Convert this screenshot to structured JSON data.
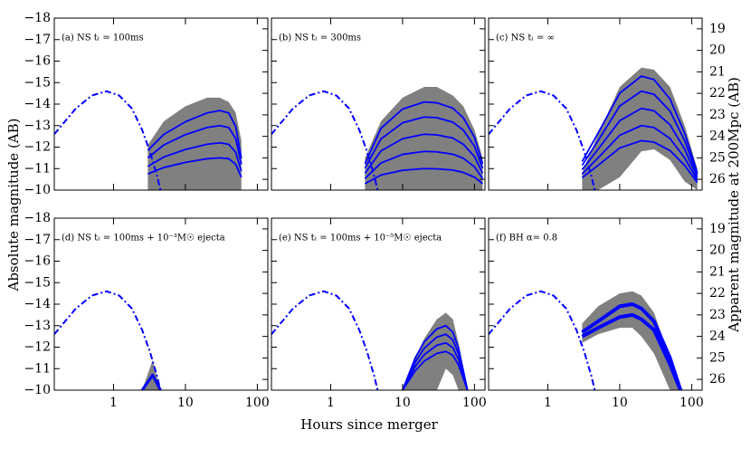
{
  "figure": {
    "xlabel": "Hours since merger",
    "ylabel": "Absolute magnitude (AB)",
    "y2label": "Apparent magnitude at 200Mpc (AB)",
    "xscale": "log",
    "xlim": [
      0.15,
      140
    ],
    "xticks": [
      1,
      10,
      100
    ],
    "ylim": [
      -10,
      -18
    ],
    "yticks": [
      {
        "value": -18,
        "label": "−18"
      },
      {
        "value": -17,
        "label": "−17"
      },
      {
        "value": -16,
        "label": "−16"
      },
      {
        "value": -15,
        "label": "−15"
      },
      {
        "value": -14,
        "label": "−14"
      },
      {
        "value": -13,
        "label": "−13"
      },
      {
        "value": -12,
        "label": "−12"
      },
      {
        "value": -11,
        "label": "−11"
      },
      {
        "value": -10,
        "label": "−10"
      }
    ],
    "y2lim": [
      26.5,
      18.5
    ],
    "y2ticks": [
      19,
      20,
      21,
      22,
      23,
      24,
      25,
      26
    ],
    "common_series": {
      "color": "#0000ff",
      "style": "dashdot",
      "x": [
        0.15,
        0.2,
        0.3,
        0.5,
        0.8,
        1.2,
        1.8,
        2.5,
        3.2,
        4,
        4.5
      ],
      "values": [
        -12.6,
        -13.1,
        -13.8,
        -14.4,
        -14.6,
        -14.4,
        -13.8,
        -12.8,
        -11.8,
        -10.7,
        -10
      ]
    }
  },
  "chart_data": [
    {
      "type": "line",
      "annotation": "(a) NS tₗ = 100ms",
      "band_color": "#808080",
      "line_width": 1.8,
      "x": [
        3,
        5,
        10,
        20,
        30,
        40,
        50,
        60
      ],
      "band_upper": [
        -12.1,
        -13.2,
        -13.9,
        -14.3,
        -14.3,
        -14.1,
        -13.6,
        -12.3
      ],
      "band_lower": [
        -10,
        -10,
        -10,
        -10,
        -10,
        -10,
        -10,
        -10
      ],
      "series": [
        {
          "color": "#0000ff",
          "values": [
            -11.85,
            -12.59,
            -13.18,
            -13.59,
            -13.7,
            -13.59,
            -12.96,
            -11.48
          ]
        },
        {
          "color": "#0000ff",
          "values": [
            -11.5,
            -12.1,
            -12.58,
            -12.91,
            -13.0,
            -12.91,
            -12.4,
            -11.2
          ]
        },
        {
          "color": "#0000ff",
          "values": [
            -11.1,
            -11.54,
            -11.89,
            -12.13,
            -12.2,
            -12.13,
            -11.76,
            -10.88
          ]
        },
        {
          "color": "#0000ff",
          "values": [
            -10.75,
            -11.05,
            -11.29,
            -11.46,
            -11.5,
            -11.46,
            -11.2,
            -10.6
          ]
        }
      ]
    },
    {
      "type": "line",
      "annotation": "(b) NS tₗ = 300ms",
      "band_color": "#808080",
      "line_width": 1.8,
      "x": [
        3,
        5,
        10,
        20,
        30,
        50,
        70,
        100,
        130
      ],
      "band_upper": [
        -11.5,
        -13.2,
        -14.3,
        -14.8,
        -14.8,
        -14.4,
        -13.9,
        -12.8,
        -11.5
      ],
      "band_lower": [
        -10,
        -10,
        -10,
        -10,
        -10,
        -10,
        -10,
        -10,
        -10
      ],
      "series": [
        {
          "color": "#0000ff",
          "values": [
            -11.23,
            -12.87,
            -13.77,
            -14.1,
            -14.06,
            -13.81,
            -13.36,
            -12.46,
            -11.23
          ]
        },
        {
          "color": "#0000ff",
          "values": [
            -11.02,
            -12.38,
            -13.13,
            -13.4,
            -13.37,
            -13.16,
            -12.79,
            -12.04,
            -11.02
          ]
        },
        {
          "color": "#0000ff",
          "values": [
            -10.78,
            -11.82,
            -12.39,
            -12.6,
            -12.57,
            -12.42,
            -12.13,
            -11.56,
            -10.78
          ]
        },
        {
          "color": "#0000ff",
          "values": [
            -10.54,
            -11.26,
            -11.66,
            -11.8,
            -11.78,
            -11.67,
            -11.48,
            -11.08,
            -10.54
          ]
        },
        {
          "color": "#0000ff",
          "values": [
            -10.3,
            -10.7,
            -10.92,
            -11.0,
            -10.99,
            -10.93,
            -10.82,
            -10.6,
            -10.3
          ]
        }
      ]
    },
    {
      "type": "line",
      "annotation": "(c) NS tₗ = ∞",
      "band_color": "#808080",
      "line_width": 1.8,
      "x": [
        3,
        5,
        10,
        20,
        30,
        50,
        80,
        120
      ],
      "band_upper": [
        -10.8,
        -12.6,
        -14.8,
        -15.7,
        -15.6,
        -14.8,
        -13,
        -11
      ],
      "band_lower": [
        -10,
        -10,
        -10.6,
        -11.8,
        -11.9,
        -11.4,
        -10.4,
        -10
      ],
      "series": [
        {
          "color": "#0000ff",
          "values": [
            -11.33,
            -12.65,
            -14.51,
            -15.3,
            -15.14,
            -14.24,
            -12.65,
            -10.8
          ]
        },
        {
          "color": "#0000ff",
          "values": [
            -11.15,
            -12.3,
            -13.91,
            -14.6,
            -14.46,
            -13.68,
            -12.3,
            -10.69
          ]
        },
        {
          "color": "#0000ff",
          "values": [
            -10.95,
            -11.9,
            -13.23,
            -13.8,
            -13.69,
            -13.04,
            -11.9,
            -10.57
          ]
        },
        {
          "color": "#0000ff",
          "values": [
            -10.75,
            -11.5,
            -12.55,
            -13.0,
            -12.91,
            -12.4,
            -11.5,
            -10.45
          ]
        },
        {
          "color": "#0000ff",
          "values": [
            -10.58,
            -11.15,
            -11.96,
            -12.3,
            -12.23,
            -11.84,
            -11.15,
            -10.35
          ]
        }
      ]
    },
    {
      "type": "line",
      "annotation": "(d) NS tₗ = 100ms + 10⁻³M☉ ejecta",
      "band_color": "#808080",
      "line_width": 3,
      "x": [
        2.5,
        3.5,
        4.5
      ],
      "band_upper": [
        -10,
        -11.4,
        -10
      ],
      "band_lower": [
        -10,
        -10,
        -10
      ],
      "series": [
        {
          "color": "#0000ff",
          "values": [
            -10,
            -10.7,
            -10
          ]
        }
      ]
    },
    {
      "type": "line",
      "annotation": "(e) NS tₗ = 100ms + 10⁻⁵M☉ ejecta",
      "band_color": "#808080",
      "line_width": 1.8,
      "x": [
        10,
        15,
        20,
        30,
        40,
        50,
        60,
        80
      ],
      "band_upper": [
        -10,
        -11.5,
        -12.4,
        -13.3,
        -13.6,
        -13.3,
        -12.2,
        -10
      ],
      "band_lower": [
        -10,
        -10,
        -10,
        -10,
        -11,
        -10.7,
        -10,
        -10
      ],
      "series": [
        {
          "color": "#0000ff",
          "values": [
            -10,
            -11.5,
            -12.25,
            -12.85,
            -13.0,
            -12.7,
            -11.95,
            -10
          ]
        },
        {
          "color": "#0000ff",
          "values": [
            -10,
            -11.3,
            -11.95,
            -12.47,
            -12.6,
            -12.34,
            -11.69,
            -10
          ]
        },
        {
          "color": "#0000ff",
          "values": [
            -10,
            -11.1,
            -11.65,
            -12.09,
            -12.2,
            -11.98,
            -11.43,
            -10
          ]
        },
        {
          "color": "#0000ff",
          "values": [
            -10,
            -10.9,
            -11.35,
            -11.71,
            -11.8,
            -11.62,
            -11.17,
            -10
          ]
        }
      ]
    },
    {
      "type": "line",
      "annotation": "(f) BH α= 0.8",
      "band_color": "#808080",
      "line_width": 4,
      "x": [
        3,
        5,
        10,
        15,
        20,
        30,
        50,
        70
      ],
      "band_upper": [
        -13.1,
        -13.9,
        -14.5,
        -14.6,
        -14.4,
        -13.6,
        -11.5,
        -10
      ],
      "band_lower": [
        -12.2,
        -12.6,
        -12.9,
        -12.9,
        -12.5,
        -11.7,
        -10,
        -10
      ],
      "series": [
        {
          "color": "#0000ff",
          "values": [
            -12.7,
            -13.2,
            -13.9,
            -14.0,
            -13.8,
            -13.2,
            -11.5,
            -10
          ]
        },
        {
          "color": "#0000ff",
          "values": [
            -12.5,
            -12.9,
            -13.4,
            -13.5,
            -13.3,
            -12.8,
            -11.2,
            -10
          ]
        }
      ]
    }
  ]
}
